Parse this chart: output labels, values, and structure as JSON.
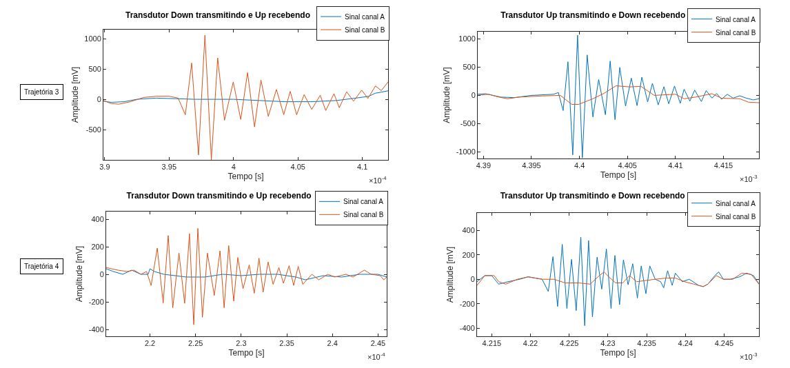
{
  "chart_data": [
    {
      "type": "line",
      "title": "Transdutor Down transmitindo e Up recebendo",
      "xlabel": "Tempo [s]",
      "ylabel": "Amplitude [mV]",
      "xlim": [
        3.899,
        4.12
      ],
      "ylim": [
        -1000,
        1150
      ],
      "xticks": [
        3.9,
        3.95,
        4,
        4.05,
        4.1
      ],
      "yticks": [
        -500,
        0,
        500,
        1000
      ],
      "legend": "top right",
      "annotations": [
        "×10$^{-4}$",
        "Trajetória 3"
      ],
      "series": [
        {
          "name": "Sinal canal A",
          "color": "#0072bd",
          "x": [
            3.899,
            3.905,
            3.915,
            3.925,
            3.94,
            3.955,
            3.97,
            4.0,
            4.02,
            4.04,
            4.06,
            4.08,
            4.095,
            4.105,
            4.11,
            4.12
          ],
          "values": [
            -30,
            -50,
            -40,
            0,
            20,
            10,
            0,
            0,
            -20,
            -40,
            -40,
            -20,
            20,
            50,
            100,
            140
          ]
        },
        {
          "name": "Sinal canal B",
          "color": "#d95319",
          "x": [
            3.899,
            3.905,
            3.911,
            3.92,
            3.93,
            3.94,
            3.95,
            3.957,
            3.9626,
            3.9675,
            3.9728,
            3.9778,
            3.9828,
            3.9877,
            3.993,
            3.9998,
            4.0056,
            4.0109,
            4.0163,
            4.0213,
            4.027,
            4.0333,
            4.039,
            4.044,
            4.049,
            4.0548,
            4.0607,
            4.0673,
            4.0716,
            4.078,
            4.0821,
            4.0878,
            4.0932,
            4.0995,
            4.1043,
            4.1102,
            4.1147,
            4.12
          ],
          "values": [
            -20,
            -70,
            -80,
            -40,
            30,
            50,
            50,
            20,
            -255,
            599,
            -919,
            1058,
            -996,
            683,
            -347,
            286,
            -332,
            440,
            -456,
            317,
            -282,
            162,
            -255,
            131,
            -255,
            77,
            -166,
            66,
            -185,
            93,
            -139,
            124,
            -31,
            151,
            15,
            220,
            143,
            286
          ]
        }
      ]
    },
    {
      "type": "line",
      "title": "Transdutor Up transmitindo e Down recebendo",
      "xlabel": "Tempo [s]",
      "ylabel": "Amplitude [mV]",
      "xlim": [
        4.3894,
        4.4187
      ],
      "ylim": [
        -1120,
        1130
      ],
      "xticks": [
        4.39,
        4.395,
        4.4,
        4.405,
        4.41,
        4.415
      ],
      "yticks": [
        -1000,
        -500,
        0,
        500,
        1000
      ],
      "legend": "top right",
      "annotations": [
        "×10$^{-3}$"
      ],
      "series": [
        {
          "name": "Sinal canal A",
          "color": "#0072bd",
          "x": [
            4.3894,
            4.3902,
            4.3918,
            4.3932,
            4.395,
            4.3973,
            4.3978,
            4.3983,
            4.3988,
            4.3993,
            4.3998,
            4.4003,
            4.4008,
            4.4014,
            4.402,
            4.4027,
            4.4032,
            4.4037,
            4.4042,
            4.4048,
            4.4054,
            4.406,
            4.4065,
            4.4071,
            4.4076,
            4.4082,
            4.4088,
            4.4093,
            4.4099,
            4.4105,
            4.4109,
            4.4115,
            4.412,
            4.4127,
            4.4132,
            4.4138,
            4.4143,
            4.4148,
            4.4154,
            4.416,
            4.4167,
            4.4174,
            4.4181,
            4.4187
          ],
          "values": [
            20,
            30,
            -30,
            -40,
            0,
            20,
            50,
            -270,
            597,
            -1056,
            1069,
            -1109,
            718,
            -383,
            282,
            -343,
            609,
            -431,
            496,
            -190,
            306,
            -181,
            323,
            -117,
            214,
            -169,
            153,
            -149,
            165,
            -141,
            109,
            -101,
            93,
            -109,
            85,
            -48,
            32,
            -69,
            20,
            -48,
            -8,
            -50,
            -80,
            -60
          ]
        },
        {
          "name": "Sinal canal B",
          "color": "#d95319",
          "x": [
            4.3894,
            4.3905,
            4.3916,
            4.3925,
            4.3937,
            4.3961,
            4.398,
            4.3992,
            4.3999,
            4.4014,
            4.4026,
            4.4038,
            4.4052,
            4.4064,
            4.4078,
            4.41,
            4.4109,
            4.4121,
            4.4138,
            4.4148,
            4.4167,
            4.4176,
            4.4187
          ],
          "values": [
            0,
            20,
            -30,
            -60,
            -30,
            -10,
            0,
            -160,
            -160,
            -60,
            40,
            170,
            150,
            160,
            0,
            20,
            -60,
            -30,
            30,
            -50,
            -60,
            -120,
            -130
          ]
        }
      ]
    },
    {
      "type": "line",
      "title": "Transdutor Down transmitindo e Up recebendo",
      "xlabel": "Tempo [s]",
      "ylabel": "Amplitude [mV]",
      "xlim": [
        2.152,
        2.4595
      ],
      "ylim": [
        -450,
        455
      ],
      "xticks": [
        2.2,
        2.25,
        2.3,
        2.35,
        2.4,
        2.45
      ],
      "yticks": [
        -400,
        -200,
        0,
        200,
        400
      ],
      "legend": "top right",
      "annotations": [
        "×10$^{-4}$",
        "Trajetória 4"
      ],
      "series": [
        {
          "name": "Sinal canal A",
          "color": "#0072bd",
          "x": [
            2.152,
            2.16,
            2.17,
            2.18,
            2.19,
            2.198,
            2.2,
            2.205,
            2.215,
            2.24,
            2.26,
            2.28,
            2.3,
            2.32,
            2.34,
            2.36,
            2.37,
            2.39,
            2.41,
            2.43,
            2.45,
            2.4595
          ],
          "values": [
            40,
            20,
            0,
            30,
            0,
            0,
            40,
            20,
            0,
            -20,
            -20,
            0,
            -10,
            0,
            0,
            -20,
            -40,
            -10,
            -20,
            0,
            0,
            -20
          ]
        },
        {
          "name": "Sinal canal B",
          "color": "#d95319",
          "x": [
            2.152,
            2.1575,
            2.165,
            2.175,
            2.1825,
            2.19,
            2.1963,
            2.2013,
            2.208,
            2.2145,
            2.22,
            2.225,
            2.2318,
            2.238,
            2.2433,
            2.248,
            2.2525,
            2.2575,
            2.263,
            2.2705,
            2.2768,
            2.2813,
            2.2863,
            2.2918,
            2.2963,
            2.302,
            2.3088,
            2.3143,
            2.3195,
            2.324,
            2.3295,
            2.335,
            2.3413,
            2.3463,
            2.3525,
            2.3575,
            2.3625,
            2.3675,
            2.3775,
            2.385,
            2.395,
            2.4025,
            2.415,
            2.4225,
            2.435,
            2.4425,
            2.4525,
            2.4563,
            2.4595
          ],
          "values": [
            50,
            40,
            30,
            20,
            30,
            0,
            20,
            -81,
            190,
            -208,
            281,
            -243,
            154,
            -211,
            295,
            -365,
            333,
            -312,
            154,
            -154,
            170,
            -243,
            208,
            -195,
            122,
            -105,
            68,
            -138,
            117,
            -130,
            89,
            -73,
            49,
            -65,
            62,
            -81,
            57,
            -73,
            0,
            -40,
            0,
            -20,
            0,
            -20,
            30,
            0,
            -10,
            -40,
            -20
          ]
        }
      ]
    },
    {
      "type": "line",
      "title": "Transdutor Up transmitindo e Down recebendo",
      "xlabel": "Tempo [s]",
      "ylabel": "Amplitude [mV]",
      "xlim": [
        4.2131,
        4.2495
      ],
      "ylim": [
        -467,
        543
      ],
      "xticks": [
        4.215,
        4.22,
        4.225,
        4.23,
        4.235,
        4.24,
        4.245
      ],
      "yticks": [
        -400,
        -200,
        0,
        200,
        400
      ],
      "legend": "top right",
      "annotations": [
        "×10$^{-3}$"
      ],
      "series": [
        {
          "name": "Sinal canal A",
          "color": "#0072bd",
          "x": [
            4.2131,
            4.2141,
            4.215,
            4.2159,
            4.2171,
            4.2186,
            4.2197,
            4.2215,
            4.2223,
            4.2229,
            4.2235,
            4.2241,
            4.2247,
            4.2253,
            4.2259,
            4.2265,
            4.227,
            4.2275,
            4.228,
            4.2286,
            4.2292,
            4.2298,
            4.2304,
            4.2309,
            4.2315,
            4.232,
            4.2326,
            4.2332,
            4.2338,
            4.2343,
            4.2349,
            4.2354,
            4.2361,
            4.2368,
            4.2372,
            4.2377,
            4.2383,
            4.2387,
            4.2396,
            4.2405,
            4.2417,
            4.2423,
            4.2429,
            4.2438,
            4.2443,
            4.2449,
            4.2458,
            4.247,
            4.2479,
            4.2488,
            4.2495
          ],
          "values": [
            -20,
            30,
            30,
            -40,
            -20,
            0,
            20,
            0,
            -100,
            185,
            -223,
            286,
            -239,
            163,
            -257,
            344,
            -380,
            317,
            -308,
            181,
            -81,
            248,
            -239,
            195,
            -208,
            159,
            -45,
            127,
            -154,
            109,
            -118,
            109,
            0,
            -20,
            -70,
            70,
            -50,
            50,
            -20,
            0,
            -50,
            -60,
            -40,
            30,
            60,
            0,
            0,
            20,
            50,
            30,
            -40
          ]
        },
        {
          "name": "Sinal canal B",
          "color": "#d95319",
          "x": [
            4.2131,
            4.2141,
            4.2153,
            4.2159,
            4.2168,
            4.2183,
            4.2197,
            4.2215,
            4.223,
            4.2245,
            4.2263,
            4.2277,
            4.2289,
            4.2295,
            4.2301,
            4.231,
            4.2319,
            4.2328,
            4.2337,
            4.2349,
            4.2361,
            4.2376,
            4.2387,
            4.2399,
            4.2411,
            4.2423,
            4.2429,
            4.244,
            4.2449,
            4.2461,
            4.2473,
            4.2485,
            4.2495
          ],
          "values": [
            -50,
            30,
            30,
            -20,
            -40,
            0,
            20,
            0,
            0,
            -30,
            -30,
            -40,
            30,
            60,
            20,
            -30,
            -30,
            30,
            -20,
            -10,
            0,
            10,
            10,
            -20,
            -40,
            -60,
            -40,
            30,
            0,
            0,
            50,
            40,
            -40
          ]
        }
      ]
    }
  ]
}
